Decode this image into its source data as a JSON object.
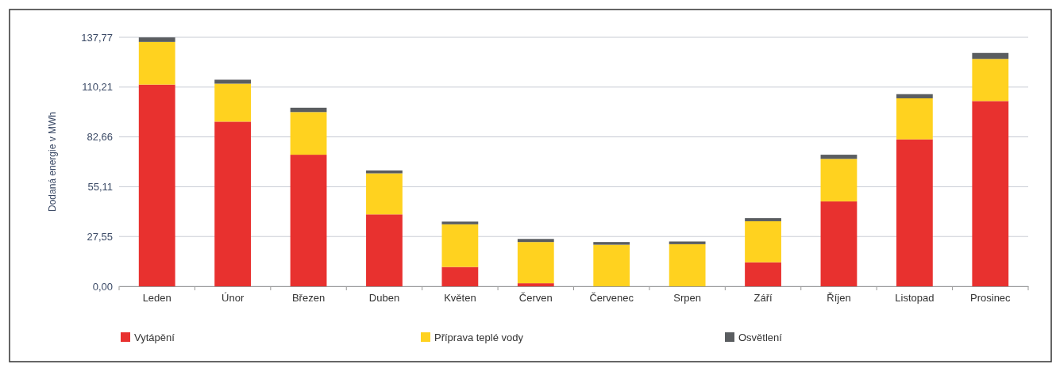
{
  "chart_data": {
    "type": "bar",
    "stacked": true,
    "ylabel": "Dodaná energie v MWh",
    "categories": [
      "Leden",
      "Únor",
      "Březen",
      "Duben",
      "Květen",
      "Červen",
      "Červenec",
      "Srpen",
      "Září",
      "Říjen",
      "Listopad",
      "Prosinec"
    ],
    "series": [
      {
        "name": "Vytápění",
        "color": "#e8312f",
        "values": [
          111.6,
          91.1,
          72.8,
          39.8,
          10.7,
          1.7,
          0,
          0,
          13.3,
          47.0,
          81.3,
          102.5
        ]
      },
      {
        "name": "Příprava teplé vody",
        "color": "#ffd21f",
        "values": [
          23.6,
          21.0,
          23.6,
          22.7,
          23.6,
          22.8,
          23.0,
          23.3,
          22.7,
          23.5,
          22.7,
          23.3
        ]
      },
      {
        "name": "Osvětlení",
        "color": "#5a5d60",
        "values": [
          2.5,
          2.2,
          2.4,
          1.6,
          1.5,
          1.7,
          1.5,
          1.5,
          1.7,
          2.3,
          2.3,
          3.3
        ]
      }
    ],
    "ylim": [
      0,
      137.77
    ],
    "yticks": [
      {
        "value": 0,
        "label": "0,00"
      },
      {
        "value": 27.55,
        "label": "27,55"
      },
      {
        "value": 55.11,
        "label": "55,11"
      },
      {
        "value": 82.66,
        "label": "82,66"
      },
      {
        "value": 110.21,
        "label": "110,21"
      },
      {
        "value": 137.77,
        "label": "137,77"
      }
    ],
    "grid": "y",
    "legend": "bottom"
  }
}
